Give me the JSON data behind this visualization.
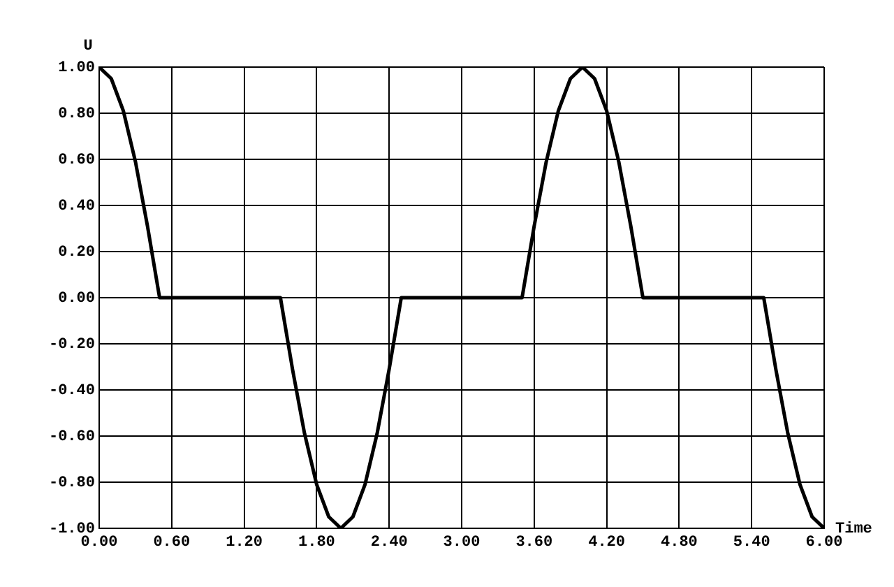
{
  "chart_data": {
    "type": "line",
    "xlabel": "Time",
    "ylabel": "U",
    "grid": true,
    "marker": "none",
    "line_style": "solid",
    "xlim": [
      0,
      6
    ],
    "ylim": [
      -1,
      1
    ],
    "xticks": [
      {
        "value": 0,
        "label": "0.00"
      },
      {
        "value": 0.6,
        "label": "0.60"
      },
      {
        "value": 1.2,
        "label": "1.20"
      },
      {
        "value": 1.8,
        "label": "1.80"
      },
      {
        "value": 2.4,
        "label": "2.40"
      },
      {
        "value": 3,
        "label": "3.00"
      },
      {
        "value": 3.6,
        "label": "3.60"
      },
      {
        "value": 4.2,
        "label": "4.20"
      },
      {
        "value": 4.8,
        "label": "4.80"
      },
      {
        "value": 5.4,
        "label": "5.40"
      },
      {
        "value": 6,
        "label": "6.00"
      }
    ],
    "yticks": [
      {
        "value": -1,
        "label": "-1.00"
      },
      {
        "value": -0.8,
        "label": "-0.80"
      },
      {
        "value": -0.6,
        "label": "-0.60"
      },
      {
        "value": -0.4,
        "label": "-0.40"
      },
      {
        "value": -0.2,
        "label": "-0.20"
      },
      {
        "value": 0,
        "label": "0.00"
      },
      {
        "value": 0.2,
        "label": "0.20"
      },
      {
        "value": 0.4,
        "label": "0.40"
      },
      {
        "value": 0.6,
        "label": "0.60"
      },
      {
        "value": 0.8,
        "label": "0.80"
      },
      {
        "value": 1,
        "label": "1.00"
      }
    ],
    "series": [
      {
        "color": "#000000",
        "x": [
          0,
          0.1,
          0.2,
          0.3,
          0.4,
          0.5,
          1.5,
          1.6,
          1.7,
          1.8,
          1.9,
          2.0,
          2.1,
          2.2,
          2.3,
          2.4,
          2.5,
          3.5,
          3.6,
          3.7,
          3.8,
          3.9,
          4.0,
          4.1,
          4.2,
          4.3,
          4.4,
          4.5,
          5.5,
          5.6,
          5.7,
          5.8,
          5.9,
          6.0
        ],
        "values": [
          1,
          0.95,
          0.81,
          0.59,
          0.31,
          0,
          0,
          -0.31,
          -0.59,
          -0.81,
          -0.95,
          -1,
          -0.95,
          -0.81,
          -0.59,
          -0.31,
          0,
          0,
          0.31,
          0.59,
          0.81,
          0.95,
          1,
          0.95,
          0.81,
          0.59,
          0.31,
          0,
          0,
          -0.31,
          -0.59,
          -0.81,
          -0.95,
          -1
        ]
      }
    ]
  }
}
